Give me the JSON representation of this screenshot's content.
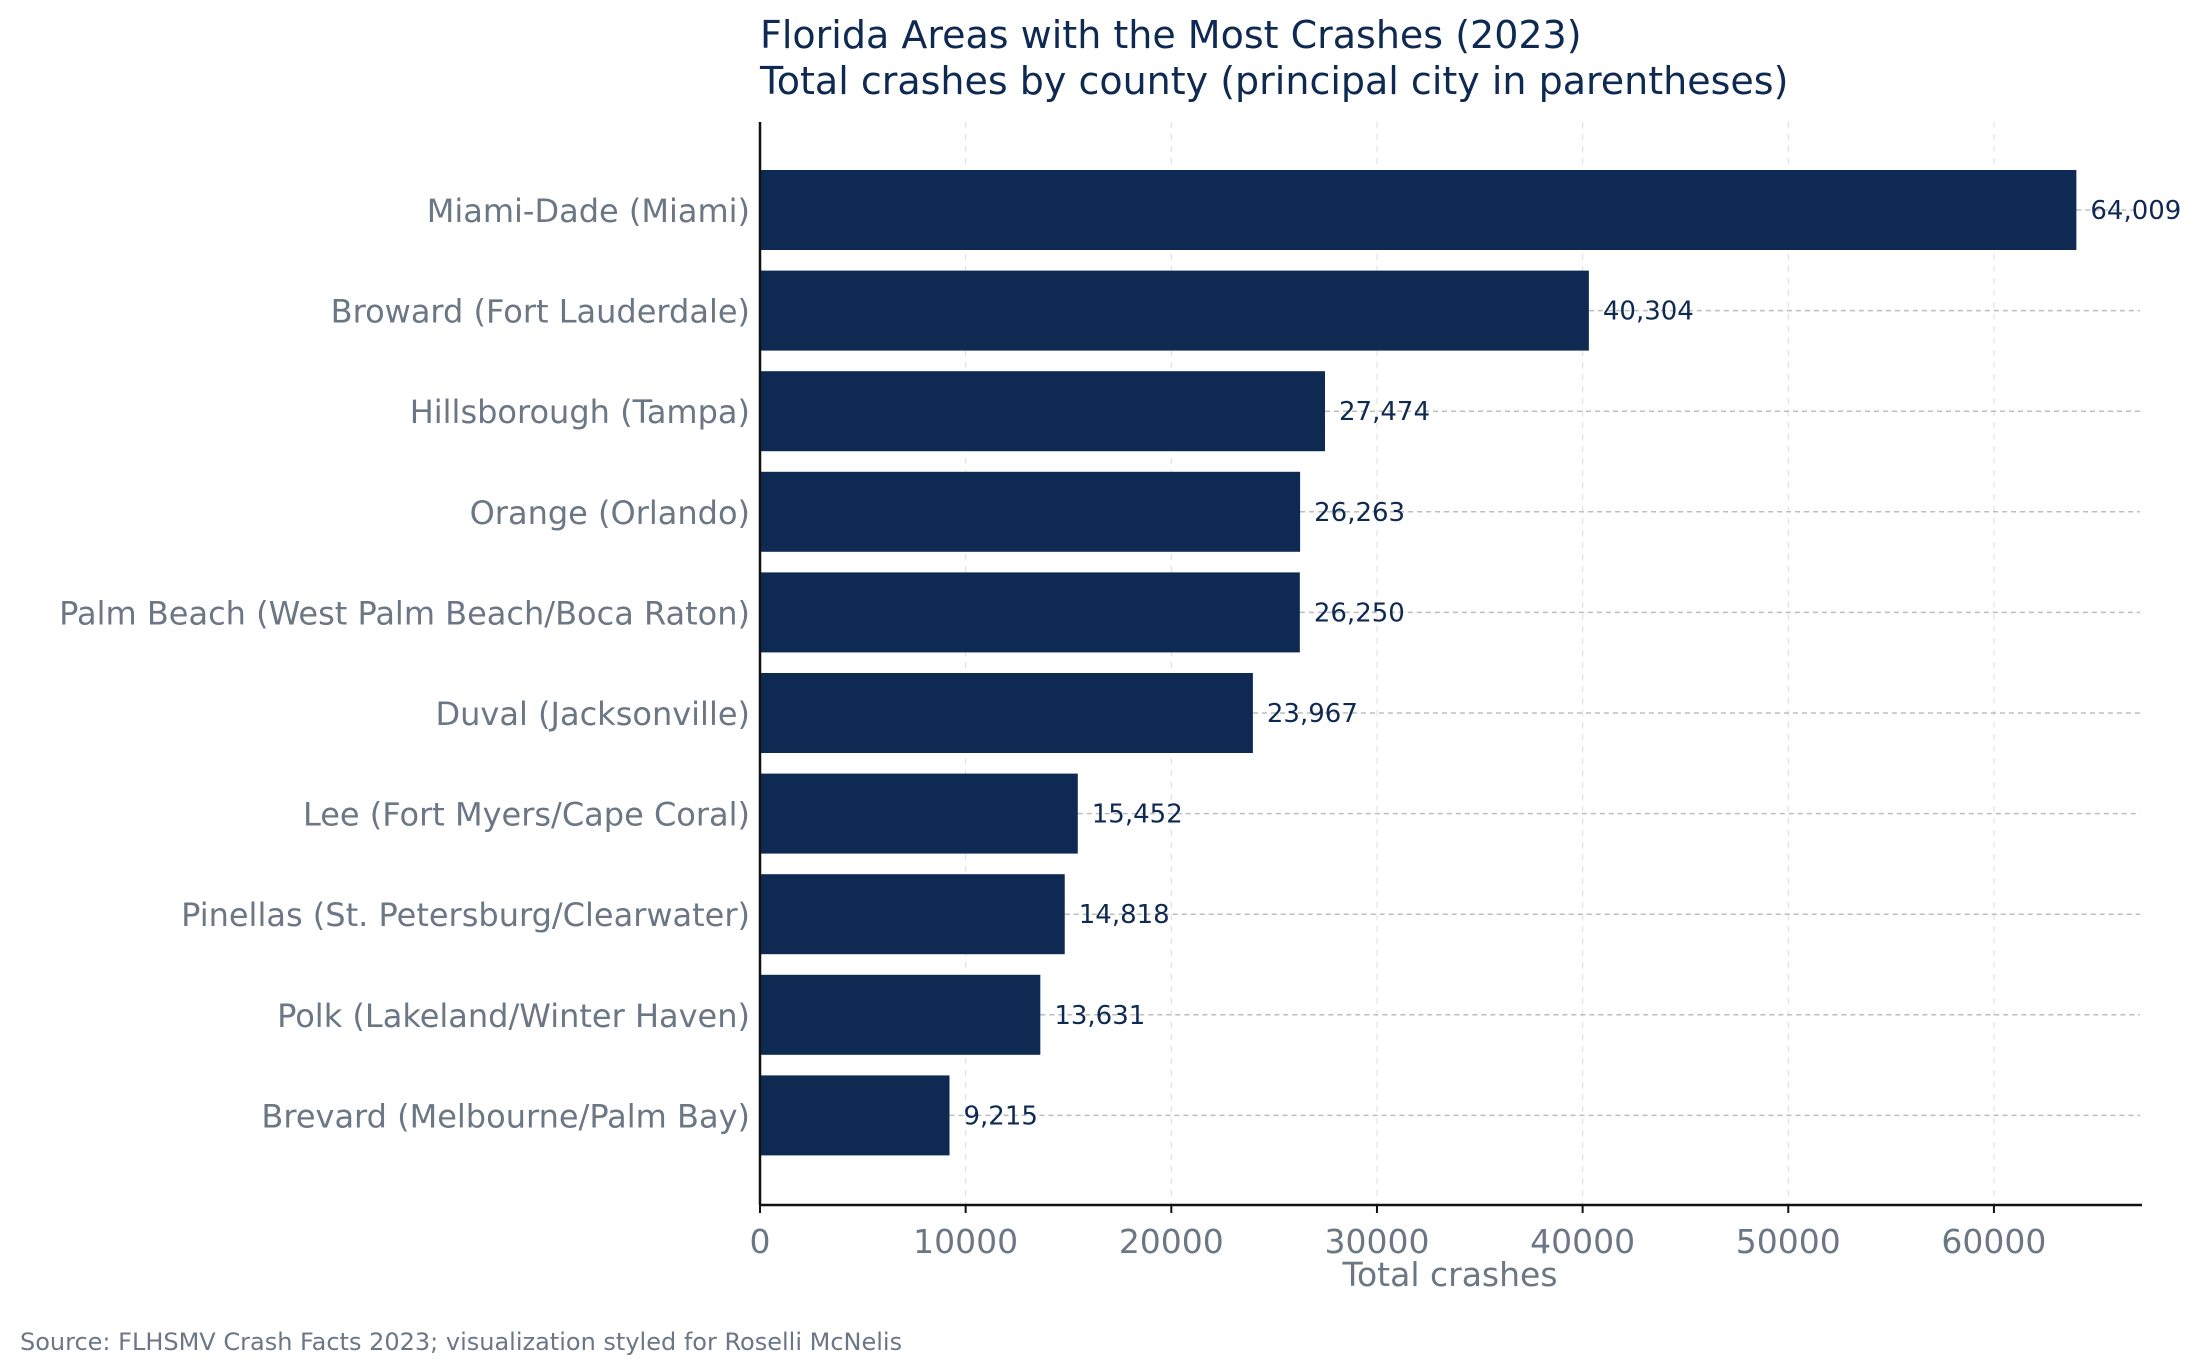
{
  "chart_data": {
    "type": "bar",
    "orientation": "horizontal",
    "title": "Florida Areas with the Most Crashes (2023)",
    "subtitle": "Total crashes by county (principal city in parentheses)",
    "xlabel": "Total crashes",
    "ylabel": "",
    "categories": [
      "Miami-Dade (Miami)",
      "Broward (Fort Lauderdale)",
      "Hillsborough (Tampa)",
      "Orange (Orlando)",
      "Palm Beach (West Palm Beach/Boca Raton)",
      "Duval (Jacksonville)",
      "Lee (Fort Myers/Cape Coral)",
      "Pinellas (St. Petersburg/Clearwater)",
      "Polk (Lakeland/Winter Haven)",
      "Brevard (Melbourne/Palm Bay)"
    ],
    "values": [
      64009,
      40304,
      27474,
      26263,
      26250,
      23967,
      15452,
      14818,
      13631,
      9215
    ],
    "value_labels": [
      "64,009",
      "40,304",
      "27,474",
      "26,263",
      "26,250",
      "23,967",
      "15,452",
      "14,818",
      "13,631",
      "9,215"
    ],
    "xlim": [
      0,
      67200
    ],
    "xticks": [
      0,
      10000,
      20000,
      30000,
      40000,
      50000,
      60000
    ],
    "xtick_labels": [
      "0",
      "10000",
      "20000",
      "30000",
      "40000",
      "50000",
      "60000"
    ],
    "grid": true,
    "bar_color": "#0f2a52",
    "source": "Source: FLHSMV Crash Facts 2023; visualization styled for Roselli McNelis"
  }
}
